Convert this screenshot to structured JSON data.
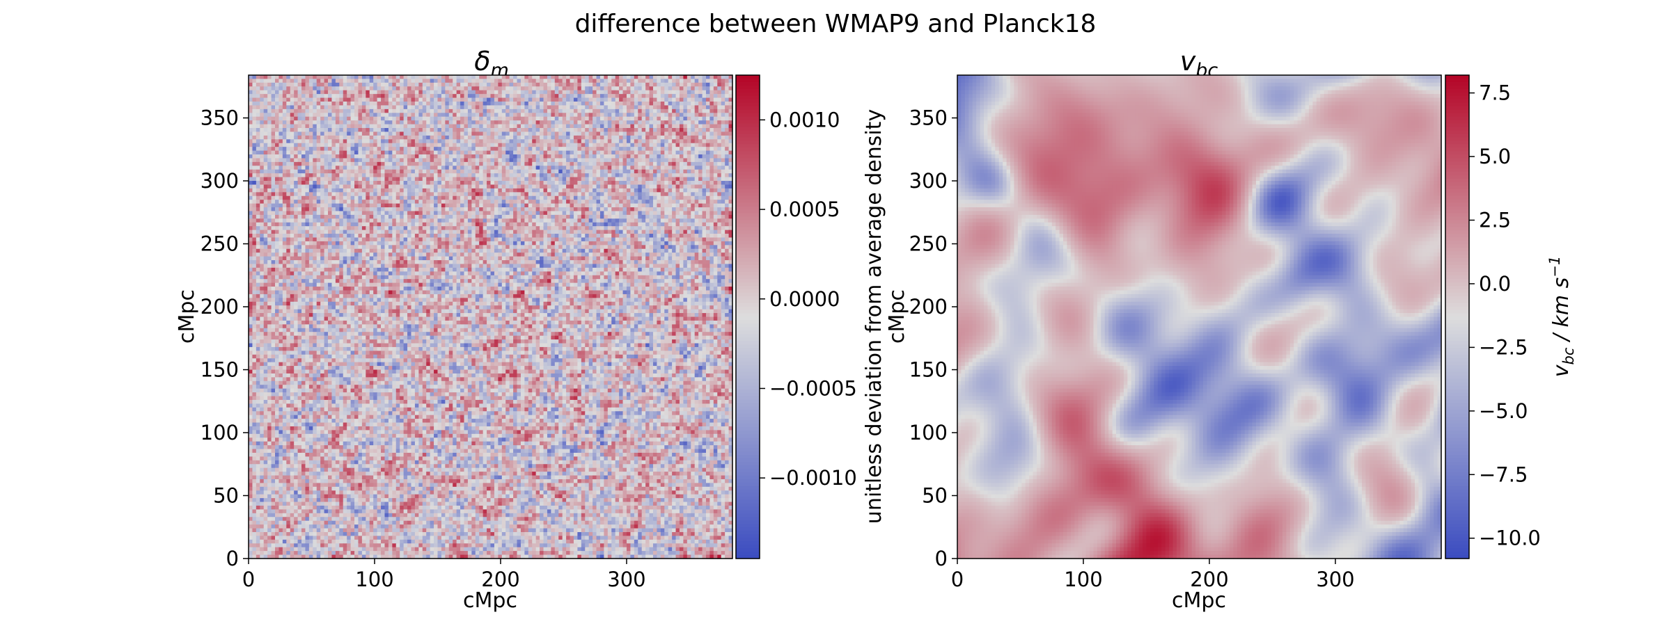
{
  "figure": {
    "suptitle": "difference between WMAP9 and Planck18"
  },
  "chart_data": [
    {
      "type": "heatmap",
      "title": "δ_m",
      "title_main": "δ",
      "title_sub": "m",
      "xlabel": "cMpc",
      "ylabel": "cMpc",
      "xlim": [
        0,
        384
      ],
      "ylim": [
        0,
        384
      ],
      "grid_cells": 128,
      "x_ticks": [
        0,
        100,
        200,
        300
      ],
      "y_ticks": [
        0,
        50,
        100,
        150,
        200,
        250,
        300,
        350
      ],
      "x_tick_labels": [
        "0",
        "100",
        "200",
        "300"
      ],
      "y_tick_labels": [
        "0",
        "50",
        "100",
        "150",
        "200",
        "250",
        "300",
        "350"
      ],
      "grid": false,
      "colormap": "coolwarm",
      "colormap_colors": [
        "#3b4cc0",
        "#dddddd",
        "#b40426"
      ],
      "field_description_values": {
        "min": -0.00145,
        "max": 0.00125,
        "texture": "white-noise"
      },
      "colorbar": {
        "range": [
          -0.00145,
          0.00125
        ],
        "ticks": [
          -0.001,
          -0.0005,
          0.0,
          0.0005,
          0.001
        ],
        "tick_labels": [
          "−0.0010",
          "−0.0005",
          "0.0000",
          "0.0005",
          "0.0010"
        ],
        "label": "unitless deviation from average density"
      }
    },
    {
      "type": "heatmap",
      "title": "v_bc",
      "title_main": "v",
      "title_sub": "bc",
      "xlabel": "cMpc",
      "ylabel": "cMpc",
      "xlim": [
        0,
        384
      ],
      "ylim": [
        0,
        384
      ],
      "grid_cells": 128,
      "x_ticks": [
        0,
        100,
        200,
        300
      ],
      "y_ticks": [
        0,
        50,
        100,
        150,
        200,
        250,
        300,
        350
      ],
      "x_tick_labels": [
        "0",
        "100",
        "200",
        "300"
      ],
      "y_tick_labels": [
        "0",
        "50",
        "100",
        "150",
        "200",
        "250",
        "300",
        "350"
      ],
      "grid": false,
      "colormap": "coolwarm",
      "colormap_colors": [
        "#3b4cc0",
        "#dddddd",
        "#b40426"
      ],
      "field_description_values": {
        "min": -10.8,
        "max": 8.2,
        "texture": "smooth-large-scale"
      },
      "colorbar": {
        "range": [
          -10.8,
          8.2
        ],
        "ticks": [
          -10.0,
          -7.5,
          -5.0,
          -2.5,
          0.0,
          2.5,
          5.0,
          7.5
        ],
        "tick_labels": [
          "−10.0",
          "−7.5",
          "−5.0",
          "−2.5",
          "0.0",
          "2.5",
          "5.0",
          "7.5"
        ],
        "label": "v_bc / km s^-1",
        "label_parts": {
          "v": "v",
          "sub": "bc",
          "unit": " / km s",
          "sup": "−1"
        }
      }
    }
  ]
}
